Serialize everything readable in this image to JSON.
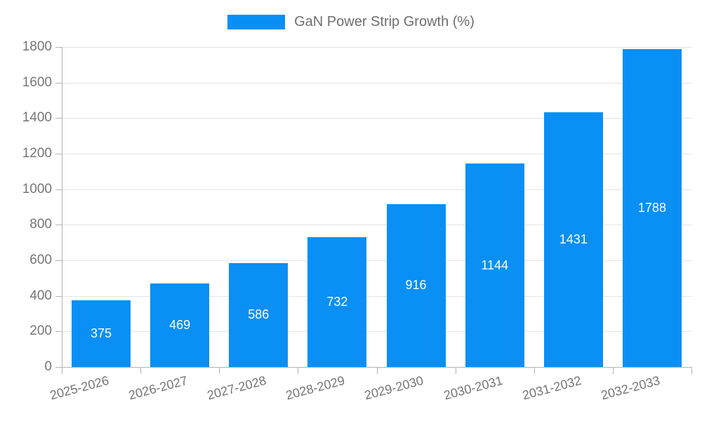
{
  "chart_data": {
    "type": "bar",
    "title": "GaN Power Strip Growth (%)",
    "legend": {
      "label": "GaN Power Strip Growth (%)",
      "position": "top-center"
    },
    "categories": [
      "2025-2026",
      "2026-2027",
      "2027-2028",
      "2028-2029",
      "2029-2030",
      "2030-2031",
      "2031-2032",
      "2032-2033"
    ],
    "values": [
      375,
      469,
      586,
      732,
      916,
      1144,
      1431,
      1788
    ],
    "data_labels": [
      "375",
      "469",
      "586",
      "732",
      "916",
      "1144",
      "1431",
      "1788"
    ],
    "xlabel": "",
    "ylabel": "",
    "ylim": [
      0,
      1800
    ],
    "ytick_step": 200,
    "ytick_labels": [
      "0",
      "200",
      "400",
      "600",
      "800",
      "1000",
      "1200",
      "1400",
      "1600",
      "1800"
    ],
    "grid": true,
    "colors": {
      "bar": "#0a8ff5",
      "bar_value_label": "#ffffff",
      "axis_text": "#757575",
      "legend_text": "#6e6e6e",
      "grid_line": "#e4e4e7",
      "axis_line": "#b3b3b6",
      "background": "#ffffff"
    }
  }
}
